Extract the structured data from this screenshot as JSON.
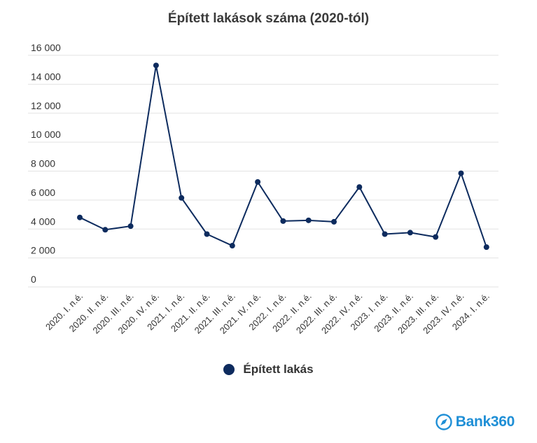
{
  "chart_data": {
    "type": "line",
    "title": "Épített lakások száma (2020-tól)",
    "xlabel": "",
    "ylabel": "",
    "ylim": [
      0,
      16000
    ],
    "yticks": [
      0,
      2000,
      4000,
      6000,
      8000,
      10000,
      12000,
      14000,
      16000
    ],
    "ytick_labels": [
      "0",
      "2 000",
      "4 000",
      "6 000",
      "8 000",
      "10 000",
      "12 000",
      "14 000",
      "16 000"
    ],
    "categories": [
      "2020. I. n.é.",
      "2020. II. n.é.",
      "2020. III. n.é.",
      "2020. IV. n.é.",
      "2021. I. n.é.",
      "2021. II. n.é.",
      "2021. III. n.é.",
      "2021. IV. n.é.",
      "2022. I. n.é.",
      "2022. II. n.é.",
      "2022. III. n.é.",
      "2022. IV. n.é.",
      "2023. I. n.é.",
      "2023. II. n.é.",
      "2023. III. n.é.",
      "2023. IV. n.é.",
      "2024. I. n.é."
    ],
    "series": [
      {
        "name": "Épített lakás",
        "color": "#0d2b5e",
        "values": [
          4800,
          3950,
          4200,
          15300,
          6150,
          3650,
          2850,
          7250,
          4550,
          4600,
          4500,
          6900,
          3650,
          3750,
          3450,
          7850,
          2750
        ]
      }
    ],
    "grid": true,
    "legend_position": "bottom-center"
  },
  "legend": {
    "label": "Épített lakás",
    "color": "#0d2b5e"
  },
  "brand": {
    "name": "Bank360",
    "color": "#1f8fd6",
    "icon": "compass-icon"
  }
}
